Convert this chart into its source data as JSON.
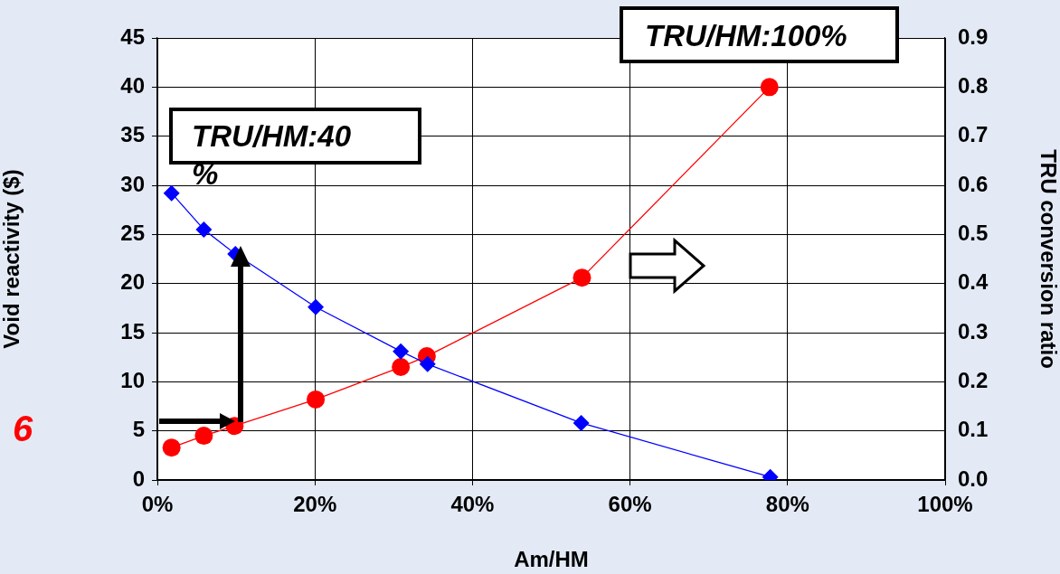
{
  "chart_data": {
    "type": "line",
    "xlabel": "Am/HM",
    "ylabel": "Void reactivity ($)",
    "y2label": "TRU conversion ratio",
    "xlim": [
      0,
      100
    ],
    "xticks": [
      {
        "value": 0,
        "label": "0%"
      },
      {
        "value": 20,
        "label": "20%"
      },
      {
        "value": 40,
        "label": "40%"
      },
      {
        "value": 60,
        "label": "60%"
      },
      {
        "value": 80,
        "label": "80%"
      },
      {
        "value": 100,
        "label": "100%"
      }
    ],
    "ylim": [
      0,
      45
    ],
    "yticks": [
      0,
      5,
      10,
      15,
      20,
      25,
      30,
      35,
      40,
      45
    ],
    "y2lim": [
      0,
      0.9
    ],
    "y2ticks": [
      {
        "value": 0,
        "label": "0.0"
      },
      0.1,
      0.2,
      0.3,
      0.4,
      0.5,
      0.6,
      0.7,
      0.8,
      0.9
    ],
    "grid": true,
    "legend": false,
    "series": [
      {
        "color": "#0000ff",
        "marker": "diamond",
        "x": [
          1.8,
          5.9,
          9.9,
          20.1,
          30.9,
          34.3,
          53.8,
          77.8
        ],
        "values": [
          29.2,
          25.5,
          23.0,
          17.6,
          13.1,
          11.8,
          5.8,
          0.3
        ]
      },
      {
        "color": "#ff0000",
        "marker": "circle",
        "axis": "y2",
        "x": [
          1.8,
          5.9,
          9.8,
          20.1,
          30.9,
          34.2,
          53.9,
          77.7
        ],
        "values": [
          0.066,
          0.09,
          0.11,
          0.164,
          0.23,
          0.252,
          0.412,
          0.8
        ]
      }
    ],
    "annotations": [
      "TRU/HM:40%",
      "TRU/HM:100%",
      "6"
    ]
  }
}
